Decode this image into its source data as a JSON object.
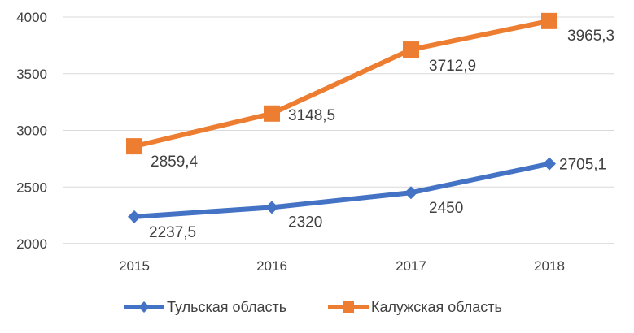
{
  "chart_data": {
    "type": "line",
    "title": "",
    "xlabel": "",
    "ylabel": "",
    "categories": [
      "2015",
      "2016",
      "2017",
      "2018"
    ],
    "ylim": [
      2000,
      4000
    ],
    "yticks": [
      2000,
      2500,
      3000,
      3500,
      4000
    ],
    "grid": true,
    "legend_position": "bottom",
    "series": [
      {
        "name": "Тульская область",
        "values": [
          2237.5,
          2320,
          2450,
          2705.1
        ],
        "labels": [
          "2237,5",
          "2320",
          "2450",
          "2705,1"
        ],
        "color": "#4472C4",
        "marker": "diamond"
      },
      {
        "name": "Калужская область",
        "values": [
          2859.4,
          3148.5,
          3712.9,
          3965.3
        ],
        "labels": [
          "2859,4",
          "3148,5",
          "3712,9",
          "3965,3"
        ],
        "color": "#ED7D31",
        "marker": "square"
      }
    ]
  }
}
